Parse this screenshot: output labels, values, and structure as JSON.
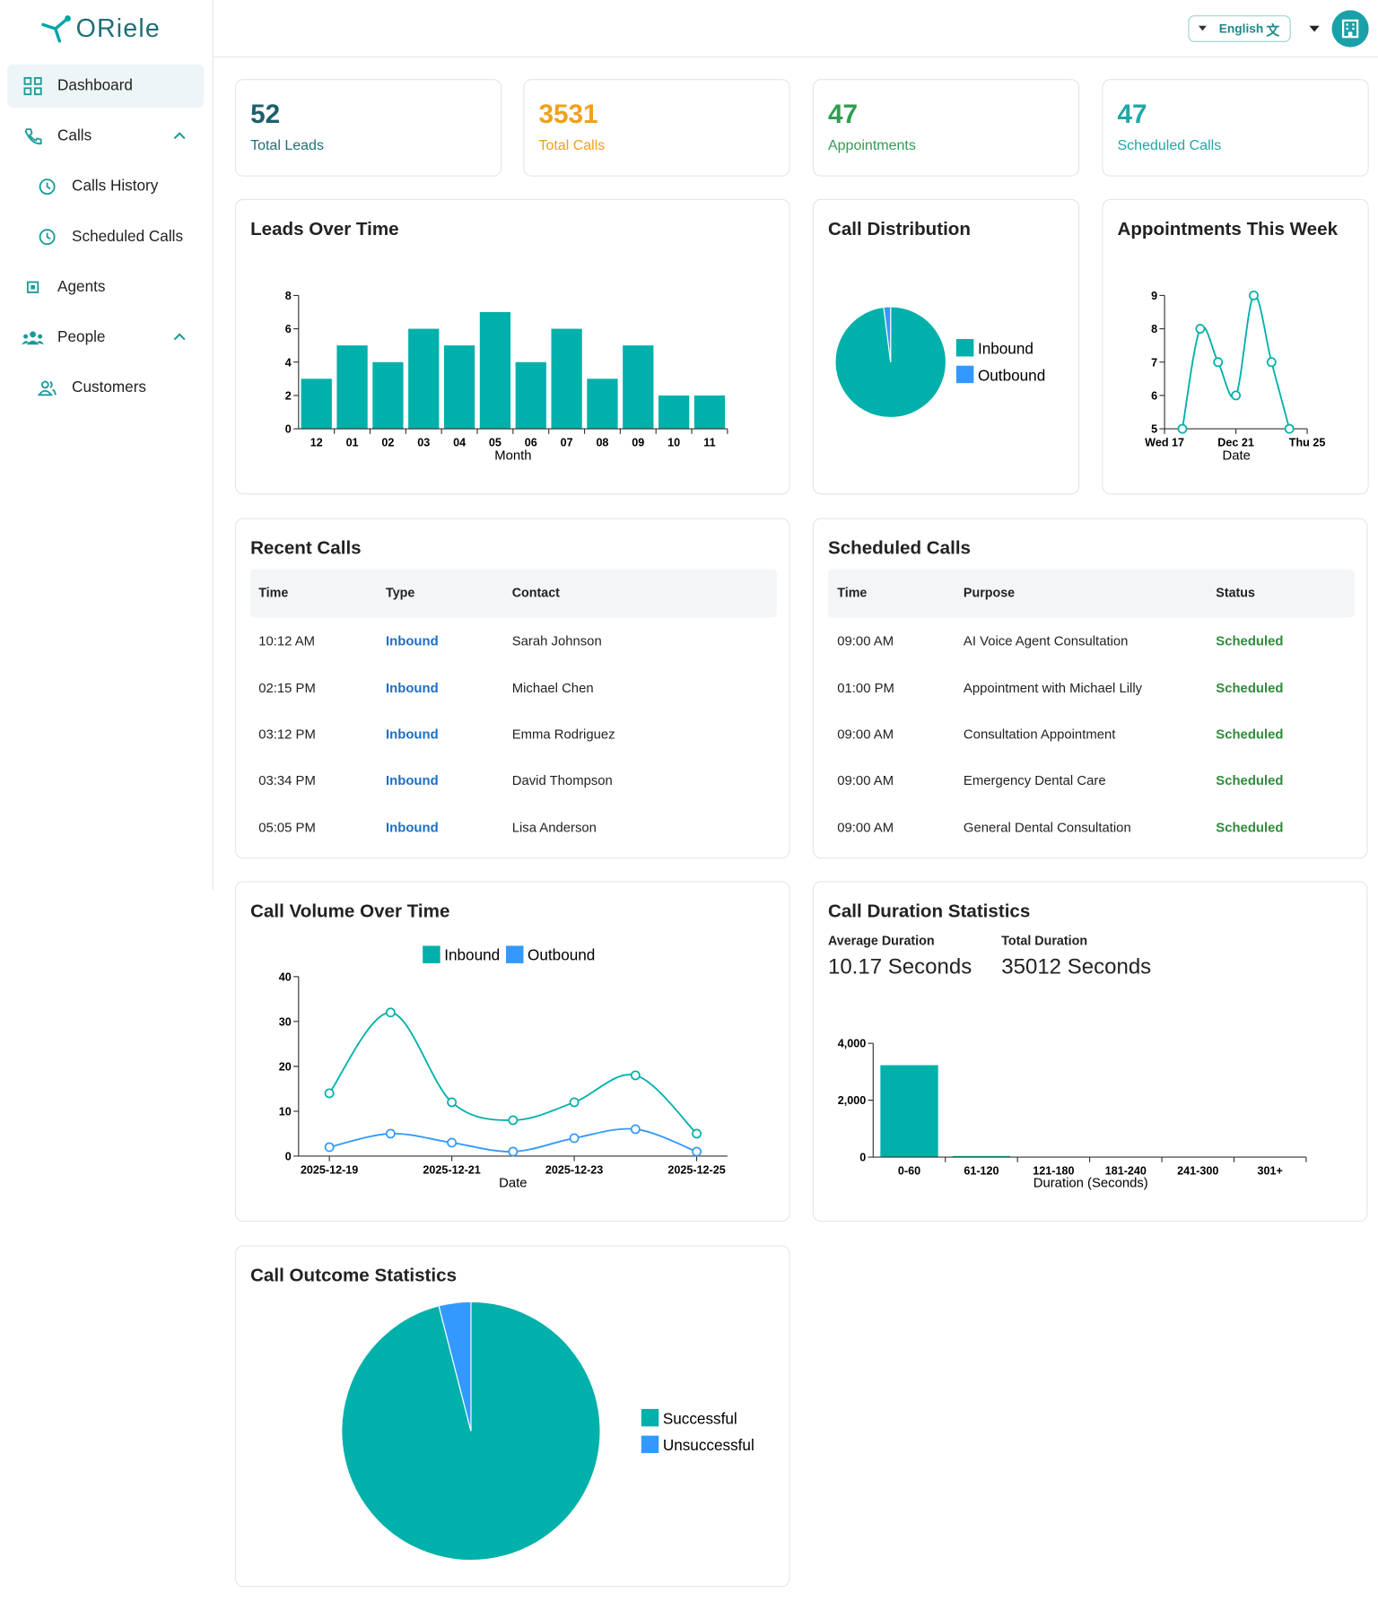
{
  "sidebar": {
    "logo": "ORiele",
    "nav": [
      "Dashboard",
      "Calls",
      "Calls History",
      "Scheduled Calls",
      "Agents",
      "People",
      "Customers"
    ]
  },
  "header": {
    "language": "English"
  },
  "stats": [
    {
      "value": 52,
      "label": "Total Leads"
    },
    {
      "value": 3531,
      "label": "Total Calls"
    },
    {
      "value": 47,
      "label": "Appointments"
    },
    {
      "value": 47,
      "label": "Scheduled Calls"
    }
  ],
  "chart_data": [
    {
      "type": "bar",
      "title": "Leads Over Time",
      "x_label": "Month",
      "categories": [
        "12",
        "01",
        "02",
        "03",
        "04",
        "05",
        "06",
        "07",
        "08",
        "09",
        "10",
        "11"
      ],
      "values": [
        3,
        5,
        4,
        6,
        5,
        7,
        4,
        6,
        3,
        5,
        2,
        2
      ],
      "color": "#00b0aa",
      "ylim": [
        0,
        8
      ],
      "yticks": [
        0,
        2,
        4,
        6,
        8
      ]
    },
    {
      "type": "pie",
      "title": "Call Distribution",
      "categories": [
        "Inbound",
        "Outbound"
      ],
      "values": [
        98,
        2
      ],
      "colors": [
        "#00b0aa",
        "#3399ff"
      ]
    },
    {
      "type": "line",
      "title": "Appointments This Week",
      "x_label": "Date",
      "x": [
        18,
        19,
        20,
        21,
        22,
        23,
        24
      ],
      "values": [
        5,
        8,
        7,
        6,
        9,
        7,
        5
      ],
      "color": "#00b0aa",
      "xlim": [
        17,
        25
      ],
      "xticks": [
        {
          "value": 17,
          "label": "Wed 17"
        },
        {
          "value": 21,
          "label": "Dec 21"
        },
        {
          "value": 25,
          "label": "Thu 25"
        }
      ],
      "ylim": [
        5,
        9
      ],
      "yticks": [
        5,
        6,
        7,
        8,
        9
      ]
    },
    {
      "type": "line",
      "title": "Call Volume Over Time",
      "x_label": "Date",
      "categories": [
        "2025-12-19",
        null,
        "2025-12-21",
        null,
        "2025-12-23",
        null,
        "2025-12-25"
      ],
      "series": [
        {
          "name": "Inbound",
          "color": "#00b0aa",
          "values": [
            14,
            32,
            12,
            8,
            12,
            18,
            5
          ]
        },
        {
          "name": "Outbound",
          "color": "#3399ff",
          "values": [
            2,
            5,
            3,
            1,
            4,
            6,
            1
          ]
        }
      ],
      "ylim": [
        0,
        40
      ],
      "yticks": [
        0,
        10,
        20,
        30,
        40
      ]
    },
    {
      "type": "bar",
      "title": "Call Duration Statistics",
      "x_label": "Duration (Seconds)",
      "categories": [
        "0-60",
        "61-120",
        "121-180",
        "181-240",
        "241-300",
        "301+"
      ],
      "values": [
        3230,
        40,
        0,
        0,
        0,
        0
      ],
      "color": "#00b0aa",
      "ylim": [
        0,
        4000
      ],
      "yticks": [
        0,
        {
          "value": 2000,
          "label": "2,000"
        },
        {
          "value": 4000,
          "label": "4,000"
        }
      ]
    },
    {
      "type": "pie",
      "title": "Call Outcome Statistics",
      "categories": [
        "Successful",
        "Unsuccessful"
      ],
      "values": [
        96,
        4
      ],
      "colors": [
        "#00b0aa",
        "#3399ff"
      ]
    }
  ],
  "duration_summary": {
    "average_label": "Average Duration",
    "average_value": "10.17 Seconds",
    "total_label": "Total Duration",
    "total_value": "35012 Seconds"
  },
  "recent_calls": {
    "title": "Recent Calls",
    "columns": [
      "Time",
      "Type",
      "Contact"
    ],
    "rows": [
      [
        "10:12 AM",
        "Inbound",
        "Sarah Johnson"
      ],
      [
        "02:15 PM",
        "Inbound",
        "Michael Chen"
      ],
      [
        "03:12 PM",
        "Inbound",
        "Emma Rodriguez"
      ],
      [
        "03:34 PM",
        "Inbound",
        "David Thompson"
      ],
      [
        "05:05 PM",
        "Inbound",
        "Lisa Anderson"
      ]
    ]
  },
  "scheduled_calls": {
    "title": "Scheduled Calls",
    "columns": [
      "Time",
      "Purpose",
      "Status"
    ],
    "rows": [
      [
        "09:00 AM",
        "AI Voice Agent Consultation",
        "Scheduled"
      ],
      [
        "01:00 PM",
        "Appointment with Michael Lilly",
        "Scheduled"
      ],
      [
        "09:00 AM",
        "Consultation Appointment",
        "Scheduled"
      ],
      [
        "09:00 AM",
        "Emergency Dental Care",
        "Scheduled"
      ],
      [
        "09:00 AM",
        "General Dental Consultation",
        "Scheduled"
      ]
    ]
  }
}
